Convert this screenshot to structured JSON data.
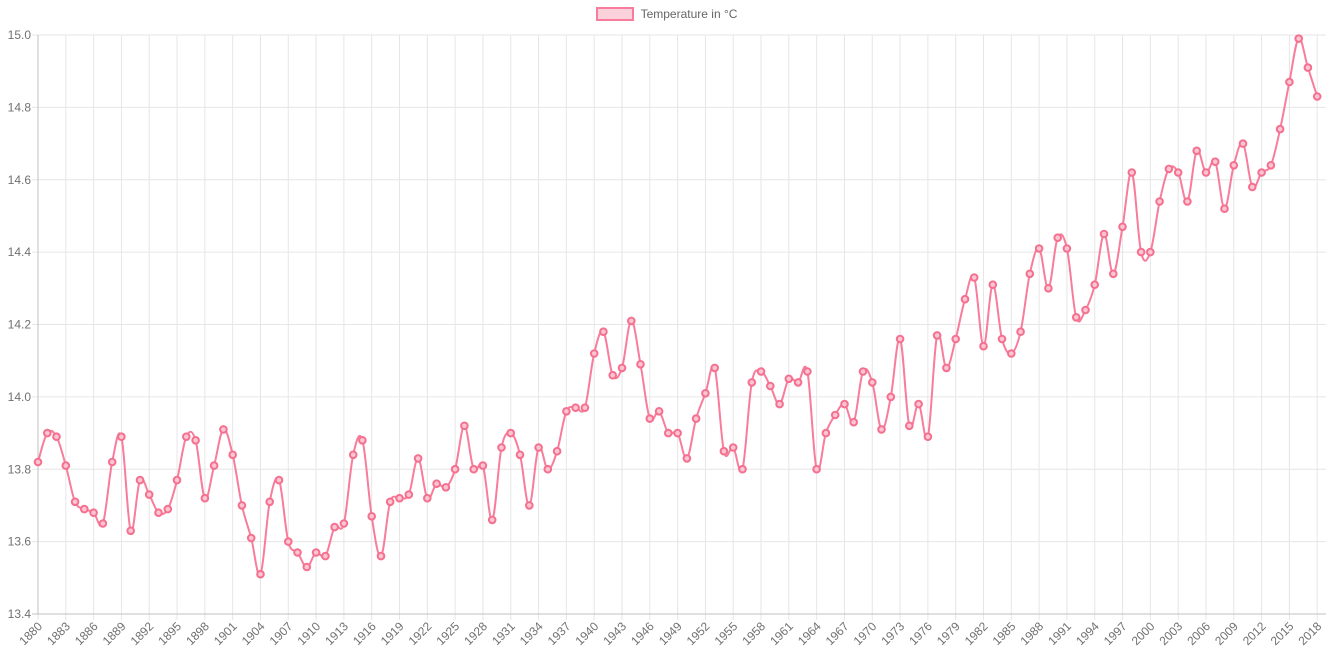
{
  "page": {
    "background": "#ffffff"
  },
  "legend": {
    "label": "Temperature in °C",
    "position": "top",
    "box_fill": "#fbd2dc",
    "box_border": "#f87c9b",
    "text_color": "#666666"
  },
  "chart_data": {
    "type": "line",
    "title": "",
    "series_name": "Temperature in °C",
    "year_start": 1880,
    "year_end": 2018,
    "values": [
      13.82,
      13.9,
      13.89,
      13.81,
      13.71,
      13.69,
      13.68,
      13.65,
      13.82,
      13.89,
      13.63,
      13.77,
      13.73,
      13.68,
      13.69,
      13.77,
      13.89,
      13.88,
      13.72,
      13.81,
      13.91,
      13.84,
      13.7,
      13.61,
      13.51,
      13.71,
      13.77,
      13.6,
      13.57,
      13.53,
      13.57,
      13.56,
      13.64,
      13.65,
      13.84,
      13.88,
      13.67,
      13.56,
      13.71,
      13.72,
      13.73,
      13.83,
      13.72,
      13.76,
      13.75,
      13.8,
      13.92,
      13.8,
      13.81,
      13.66,
      13.86,
      13.9,
      13.84,
      13.7,
      13.86,
      13.8,
      13.85,
      13.96,
      13.97,
      13.97,
      14.12,
      14.18,
      14.06,
      14.08,
      14.21,
      14.09,
      13.94,
      13.96,
      13.9,
      13.9,
      13.83,
      13.94,
      14.01,
      14.08,
      13.85,
      13.86,
      13.8,
      14.04,
      14.07,
      14.03,
      13.98,
      14.05,
      14.04,
      14.07,
      13.8,
      13.9,
      13.95,
      13.98,
      13.93,
      14.07,
      14.04,
      13.91,
      14.0,
      14.16,
      13.92,
      13.98,
      13.89,
      14.17,
      14.08,
      14.16,
      14.27,
      14.33,
      14.14,
      14.31,
      14.16,
      14.12,
      14.18,
      14.34,
      14.41,
      14.3,
      14.44,
      14.41,
      14.22,
      14.24,
      14.31,
      14.45,
      14.34,
      14.47,
      14.62,
      14.4,
      14.4,
      14.54,
      14.63,
      14.62,
      14.54,
      14.68,
      14.62,
      14.65,
      14.52,
      14.64,
      14.7,
      14.58,
      14.62,
      14.64,
      14.74,
      14.87,
      14.99,
      14.91,
      14.83
    ],
    "xlabel": "",
    "ylabel": "",
    "ylim": [
      13.4,
      15.0
    ],
    "ytick_labels": [
      "15.0",
      "14.8",
      "14.6",
      "14.4",
      "14.2",
      "14.0",
      "13.8",
      "13.6",
      "13.4"
    ],
    "xtick_labels": [
      "1880",
      "1883",
      "1886",
      "1889",
      "1892",
      "1895",
      "1898",
      "1901",
      "1904",
      "1907",
      "1910",
      "1913",
      "1916",
      "1919",
      "1922",
      "1925",
      "1928",
      "1931",
      "1934",
      "1937",
      "1940",
      "1943",
      "1946",
      "1949",
      "1952",
      "1955",
      "1958",
      "1961",
      "1964",
      "1967",
      "1970",
      "1973",
      "1976",
      "1979",
      "1982",
      "1985",
      "1988",
      "1991",
      "1994",
      "1997",
      "2000",
      "2003",
      "2006",
      "2009",
      "2012",
      "2015",
      "2018"
    ],
    "grid": true,
    "legend_position": "top",
    "colors": {
      "line": "#f87c9b",
      "point_fill": "#fbc5d2",
      "point_border": "#f5708f",
      "grid": "#e6e6e6",
      "axis_line": "#c2c2c2",
      "tick_text": "#707070"
    }
  }
}
